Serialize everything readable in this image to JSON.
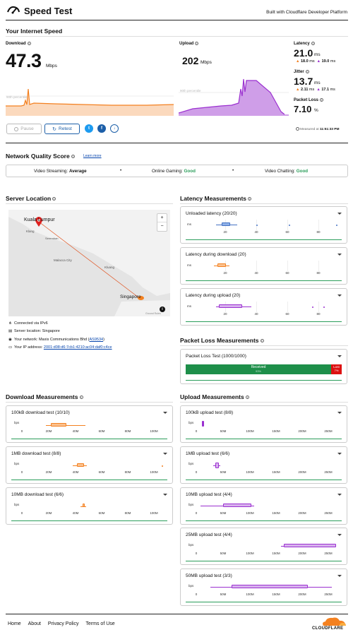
{
  "header": {
    "title": "Speed Test",
    "tagline": "Built with Cloudflare Developer Platform"
  },
  "speed": {
    "section_title": "Your Internet Speed",
    "download": {
      "label": "Download",
      "value": "47.3",
      "unit": "Mbps",
      "percentile": "90th percentile"
    },
    "upload": {
      "label": "Upload",
      "value": "202",
      "unit": "Mbps",
      "percentile": "90th percentile"
    },
    "latency": {
      "label": "Latency",
      "value": "21.0",
      "unit": "ms",
      "down": "18.0",
      "up": "19.0",
      "sub_unit": "ms"
    },
    "jitter": {
      "label": "Jitter",
      "value": "13.7",
      "unit": "ms",
      "down": "2.11",
      "up": "17.1",
      "sub_unit": "ms"
    },
    "packet_loss": {
      "label": "Packet Loss",
      "value": "7.10",
      "unit": "%"
    },
    "pause_label": "Pause",
    "retest_label": "Retest",
    "twitter": "t",
    "facebook": "f",
    "download_btn": "↓",
    "measured": "Measured at",
    "measured_time": "11:51:33 PM"
  },
  "quality": {
    "title": "Network Quality Score",
    "learn_more": "Learn more",
    "video_streaming": "Video Streaming:",
    "video_streaming_value": "Average",
    "online_gaming": "Online Gaming:",
    "online_gaming_value": "Good",
    "video_chatting": "Video Chatting:",
    "video_chatting_value": "Good"
  },
  "server": {
    "title": "Server Location",
    "map_labels": {
      "kl": "Kuala Lumpur",
      "klang": "Klang",
      "seremban": "Seremban",
      "malacca": "Malacca City",
      "kluang": "Kluang",
      "singapore": "Singapore"
    },
    "attribution": "Ground Rules",
    "ipv6": "Connected via IPv6",
    "location": "Server location: Singapore",
    "network": "Your network: Maxis Communications Bhd (",
    "asn": "AS9534",
    "network_close": ")",
    "ip_label": "Your IP address:",
    "ip": "2001:d08:d6:7cb1:4210:ac04:daf0:c4ce",
    "zoom_in": "+",
    "zoom_out": "−",
    "info": "i"
  },
  "latency_meas": {
    "title": "Latency Measurements",
    "unloaded": "Unloaded latency (20/20)",
    "during_dl": "Latency during download (20)",
    "during_ul": "Latency during upload (20)",
    "unit": "ms",
    "ticks": [
      "20",
      "40",
      "60",
      "80"
    ]
  },
  "packet_meas": {
    "title": "Packet Loss Measurements",
    "test": "Packet Loss Test (1000/1000)",
    "received": "Received",
    "received_pct": "93%",
    "lost": "Lost",
    "lost_pct": "7%"
  },
  "dl_meas": {
    "title": "Download Measurements",
    "t100k": "100kB download test (10/10)",
    "t1m": "1MB download test (8/8)",
    "t10m": "10MB download test (6/6)",
    "unit": "bps",
    "ticks": [
      "0",
      "20M",
      "40M",
      "60M",
      "80M",
      "100M"
    ]
  },
  "ul_meas": {
    "title": "Upload Measurements",
    "t100k": "100kB upload test (8/8)",
    "t1m": "1MB upload test (6/6)",
    "t10m": "10MB upload test (4/4)",
    "t25m": "25MB upload test (4/4)",
    "t50m": "50MB upload test (3/3)",
    "unit": "bps",
    "ticks": [
      "0",
      "50M",
      "100M",
      "150M",
      "200M",
      "250M"
    ]
  },
  "footer": {
    "home": "Home",
    "about": "About",
    "privacy": "Privacy Policy",
    "terms": "Terms of Use",
    "brand": "CLOUDFLARE"
  },
  "colors": {
    "download": "#f38020",
    "upload": "#9b30d0",
    "good": "#2a9d5a",
    "lost": "#d11",
    "brand": "#f48120"
  }
}
